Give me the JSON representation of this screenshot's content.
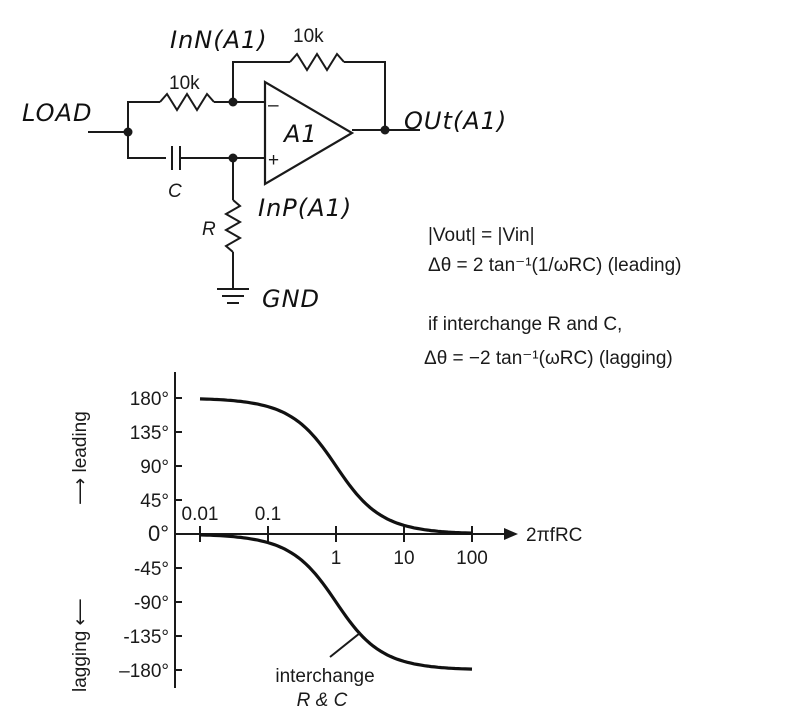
{
  "circuit": {
    "input_label": "LOAD",
    "output_label": "OUt(A1)",
    "inverting_node_label": "InN(A1)",
    "noninverting_node_label": "InP(A1)",
    "ground_label": "GND",
    "opamp_label": "A1",
    "opamp_minus": "–",
    "opamp_plus": "+",
    "feedback_resistor": "10k",
    "input_resistor": "10k",
    "capacitor": "C",
    "resistor": "R"
  },
  "equations": {
    "magnitude": "|Vout| = |Vin|",
    "phase_leading": "Δθ = 2 tan⁻¹(1/ωRC)   (leading)",
    "interchange_note": "if interchange R and C,",
    "phase_lagging": "Δθ = −2 tan⁻¹(ωRC)    (lagging)"
  },
  "chart_data": {
    "type": "line",
    "xscale": "log",
    "xlabel": "2πfRC",
    "ylabel_top": "⟶ leading",
    "ylabel_bottom": "lagging ⟵",
    "x_ticks": [
      "0.01",
      "0.1",
      "1",
      "10",
      "100"
    ],
    "y_ticks": [
      "180°",
      "135°",
      "90°",
      "45°",
      "0°",
      "-45°",
      "-90°",
      "-135°",
      "–180°"
    ],
    "ylim": [
      -180,
      180
    ],
    "xlim": [
      0.01,
      100
    ],
    "series": [
      {
        "x": [
          0.01,
          0.02,
          0.05,
          0.1,
          0.2,
          0.5,
          1,
          2,
          5,
          10,
          20,
          50,
          100
        ],
        "y": [
          178.9,
          177.7,
          174.3,
          168.6,
          157.4,
          126.9,
          90,
          53.1,
          22.6,
          11.4,
          5.7,
          2.3,
          1.1
        ]
      },
      {
        "name": "interchange R & C",
        "x": [
          0.01,
          0.02,
          0.05,
          0.1,
          0.2,
          0.5,
          1,
          2,
          5,
          10,
          20,
          50,
          100
        ],
        "y": [
          -1.1,
          -2.3,
          -5.7,
          -11.4,
          -22.6,
          -53.1,
          -90,
          -126.9,
          -157.4,
          -168.6,
          -174.3,
          -177.7,
          -178.9
        ]
      }
    ],
    "annotation": [
      "interchange",
      "R & C"
    ]
  }
}
